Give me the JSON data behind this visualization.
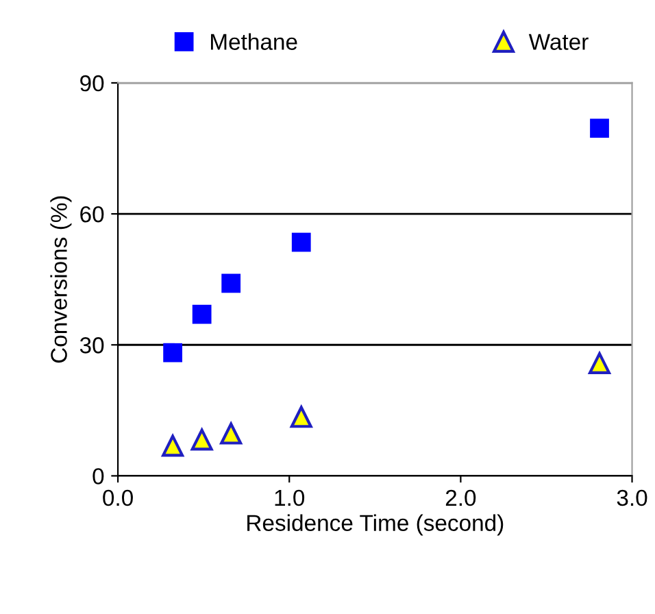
{
  "chart_data": {
    "type": "scatter",
    "xlabel": "Residence Time (second)",
    "ylabel": "Conversions (%)",
    "x": [
      0.32,
      0.49,
      0.66,
      1.07,
      2.81
    ],
    "series": [
      {
        "name": "Methane",
        "color": "#0000ff",
        "marker": "square",
        "values": [
          28.2,
          37.0,
          44.1,
          53.5,
          79.6
        ]
      },
      {
        "name": "Water",
        "color": "#ffff00",
        "marker": "triangle",
        "values": [
          6.9,
          8.3,
          9.7,
          13.5,
          25.8
        ]
      }
    ],
    "xlim": [
      0,
      3
    ],
    "xticks": [
      {
        "value": 0,
        "label": "0.0"
      },
      {
        "value": 1,
        "label": "1.0"
      },
      {
        "value": 2,
        "label": "2.0"
      },
      {
        "value": 3,
        "label": "3.0"
      }
    ],
    "ylim": [
      0,
      90
    ],
    "yticks": [
      0,
      30,
      60,
      90
    ],
    "grid": "y",
    "legend": "top"
  }
}
